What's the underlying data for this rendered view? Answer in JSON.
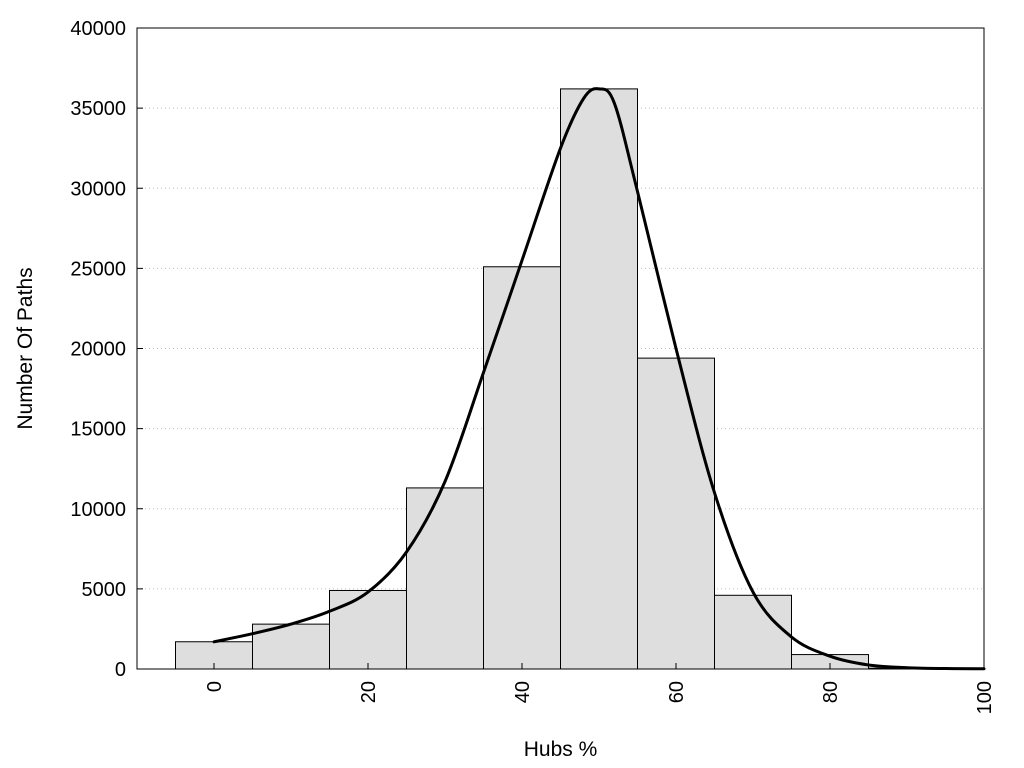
{
  "chart_data": {
    "type": "bar",
    "xlabel": "Hubs %",
    "ylabel": "Number Of Paths",
    "xlim": [
      -10,
      100
    ],
    "ylim": [
      0,
      40000
    ],
    "grid": true,
    "bin_width": 10,
    "x_ticks": [
      0,
      20,
      40,
      60,
      80,
      100
    ],
    "y_ticks": [
      0,
      5000,
      10000,
      15000,
      20000,
      25000,
      30000,
      35000,
      40000
    ],
    "categories": [
      "0",
      "10",
      "20",
      "30",
      "40",
      "50",
      "60",
      "70",
      "80",
      "90"
    ],
    "x": [
      0,
      10,
      20,
      30,
      40,
      50,
      60,
      70,
      80,
      90
    ],
    "values": [
      1700,
      2800,
      4900,
      11300,
      25100,
      36200,
      19400,
      4600,
      900,
      50
    ],
    "curve": {
      "x": [
        0,
        5,
        10,
        15,
        20,
        25,
        30,
        35,
        40,
        45,
        48,
        50,
        52,
        55,
        60,
        65,
        70,
        75,
        80,
        85,
        90,
        95,
        100
      ],
      "y": [
        1700,
        2200,
        2800,
        3600,
        4800,
        7300,
        11700,
        18500,
        25500,
        32500,
        35600,
        36200,
        35300,
        29800,
        20000,
        11000,
        4800,
        2000,
        800,
        250,
        80,
        30,
        20
      ]
    }
  }
}
